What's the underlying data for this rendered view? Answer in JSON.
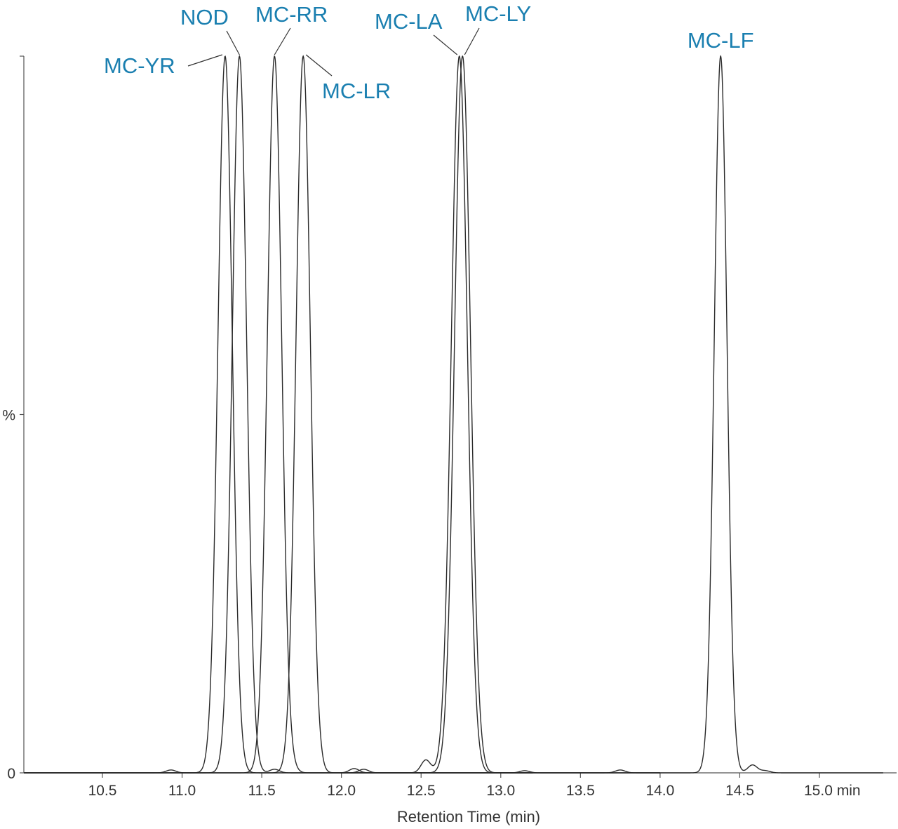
{
  "colors": {
    "label": "#1a7fb0",
    "trace": "#2a2a2a",
    "axis": "#555555"
  },
  "chart_data": {
    "type": "line",
    "title": "",
    "xlabel": "Retention Time (min)",
    "ylabel": "%",
    "xlim": [
      10.0,
      15.4
    ],
    "ylim": [
      0,
      100
    ],
    "x_ticks": [
      10.5,
      11.0,
      11.5,
      12.0,
      12.5,
      13.0,
      13.5,
      14.0,
      14.5,
      15.0
    ],
    "x_tick_labels": [
      "10.5",
      "11.0",
      "11.5",
      "12.0",
      "12.5",
      "13.0",
      "13.5",
      "14.0",
      "14.5",
      "15.0 min"
    ],
    "y_ticks": [
      0,
      50
    ],
    "y_tick_labels": [
      "0",
      "%"
    ],
    "grid": false,
    "legend": "none",
    "series": [
      {
        "label": "MC-YR",
        "peak_rt": 11.27,
        "peak_height": 100,
        "width": 0.045,
        "minor": [
          [
            10.93,
            0.4
          ]
        ]
      },
      {
        "label": "NOD",
        "peak_rt": 11.36,
        "peak_height": 100,
        "width": 0.045,
        "minor": [
          [
            11.58,
            0.5
          ]
        ]
      },
      {
        "label": "MC-RR",
        "peak_rt": 11.58,
        "peak_height": 100,
        "width": 0.045,
        "minor": [
          [
            12.14,
            0.5
          ],
          [
            11.7,
            0.3
          ]
        ]
      },
      {
        "label": "MC-LR",
        "peak_rt": 11.76,
        "peak_height": 100,
        "width": 0.045,
        "minor": [
          [
            12.08,
            0.6
          ]
        ]
      },
      {
        "label": "MC-LA",
        "peak_rt": 12.74,
        "peak_height": 100,
        "width": 0.05,
        "minor": [
          [
            12.53,
            1.8
          ],
          [
            13.15,
            0.3
          ]
        ]
      },
      {
        "label": "MC-LY",
        "peak_rt": 12.76,
        "peak_height": 100,
        "width": 0.05,
        "minor": [
          [
            13.75,
            0.4
          ]
        ]
      },
      {
        "label": "MC-LF",
        "peak_rt": 14.38,
        "peak_height": 100,
        "width": 0.04,
        "minor": [
          [
            14.58,
            1.1
          ],
          [
            14.66,
            0.3
          ]
        ]
      }
    ],
    "annotations": [
      "MC-YR",
      "NOD",
      "MC-RR",
      "MC-LR",
      "MC-LA",
      "MC-LY",
      "MC-LF"
    ]
  }
}
